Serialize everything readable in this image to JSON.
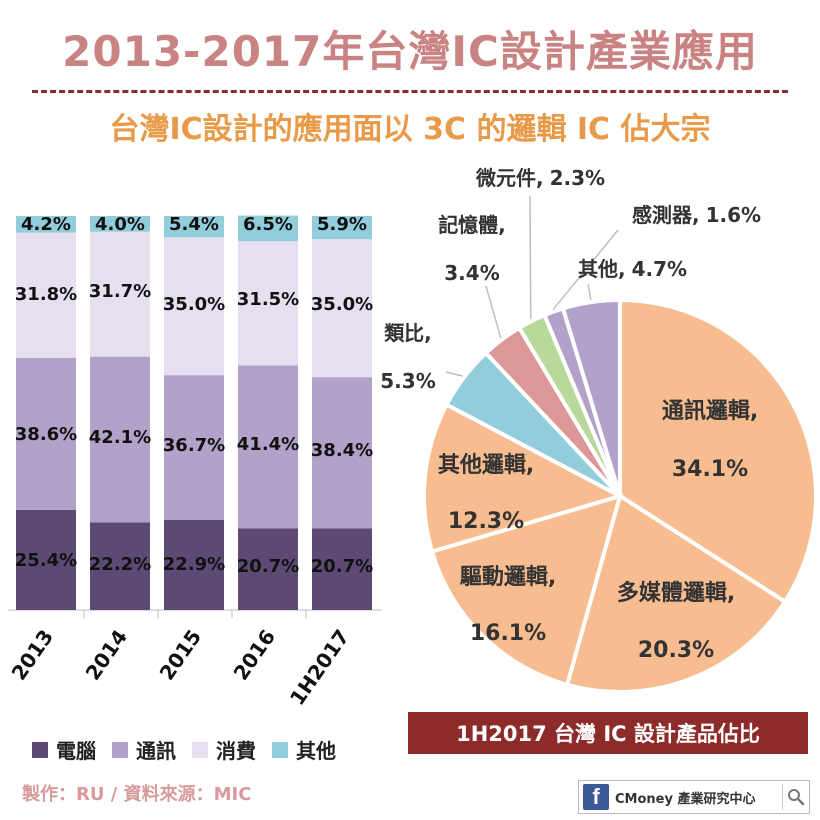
{
  "title": "2013-2017年台灣IC設計產業應用",
  "subtitle": "台灣IC設計的應用面以 3C 的邏輯 IC 佔大宗",
  "colors": {
    "title": "#c98383",
    "subtitle": "#e89a48",
    "credit": "#d89a9a",
    "computer": "#5c4a75",
    "communication": "#b2a1c9",
    "consumer": "#e5dff0",
    "other": "#92cddb",
    "pie_logic": "#f7bc90",
    "pie_analog": "#92cddb",
    "pie_memory": "#dc9797",
    "pie_micro": "#b8d99a",
    "pie_sensor": "#b2a1c9",
    "pie_other": "#b2a1c9"
  },
  "legend": [
    {
      "label": "電腦",
      "color_key": "computer"
    },
    {
      "label": "通訊",
      "color_key": "communication"
    },
    {
      "label": "消費",
      "color_key": "consumer"
    },
    {
      "label": "其他",
      "color_key": "other"
    }
  ],
  "credit": "製作：RU  / 資料來源：MIC",
  "pie_caption": "1H2017 台灣 IC 設計產品佔比",
  "brand": {
    "fb": "f",
    "label": "CMoney 產業研究中心",
    "icon": "search-icon"
  },
  "chart_data": [
    {
      "type": "bar",
      "stacked": true,
      "categories": [
        "2013",
        "2014",
        "2015",
        "2016",
        "1H2017"
      ],
      "series": [
        {
          "name": "電腦",
          "color_key": "computer",
          "values": [
            25.4,
            22.2,
            22.9,
            20.7,
            20.7
          ]
        },
        {
          "name": "通訊",
          "color_key": "communication",
          "values": [
            38.6,
            42.1,
            36.7,
            41.4,
            38.4
          ]
        },
        {
          "name": "消費",
          "color_key": "consumer",
          "values": [
            31.8,
            31.7,
            35.0,
            31.5,
            35.0
          ]
        },
        {
          "name": "其他",
          "color_key": "other",
          "values": [
            4.2,
            4.0,
            5.4,
            6.5,
            5.9
          ]
        }
      ],
      "labels": [
        [
          "25.4%",
          "38.6%",
          "31.8%",
          "4.2%"
        ],
        [
          "22.2%",
          "42.1%",
          "31.7%",
          "4.0%"
        ],
        [
          "22.9%",
          "36.7%",
          "35.0%",
          "5.4%"
        ],
        [
          "20.7%",
          "41.4%",
          "31.5%",
          "6.5%"
        ],
        [
          "20.7%",
          "38.4%",
          "35.0%",
          "5.9%"
        ]
      ],
      "ylim": [
        0,
        100
      ],
      "grid": false,
      "legend_position": "bottom"
    },
    {
      "type": "pie",
      "slices": [
        {
          "label": "通訊邏輯,",
          "value": 34.1,
          "text": "34.1%",
          "color_key": "pie_logic"
        },
        {
          "label": "多媒體邏輯,",
          "value": 20.3,
          "text": "20.3%",
          "color_key": "pie_logic"
        },
        {
          "label": "驅動邏輯,",
          "value": 16.1,
          "text": "16.1%",
          "color_key": "pie_logic"
        },
        {
          "label": "其他邏輯,",
          "value": 12.3,
          "text": "12.3%",
          "color_key": "pie_logic"
        },
        {
          "label": "類比,",
          "value": 5.3,
          "text": "5.3%",
          "color_key": "pie_analog"
        },
        {
          "label": "記憶體,",
          "value": 3.4,
          "text": "3.4%",
          "color_key": "pie_memory"
        },
        {
          "label": "微元件,",
          "value": 2.3,
          "text": "2.3%",
          "color_key": "pie_micro"
        },
        {
          "label": "感測器,",
          "value": 1.6,
          "text": "1.6%",
          "color_key": "pie_sensor"
        },
        {
          "label": "其他,",
          "value": 4.7,
          "text": "4.7%",
          "color_key": "pie_other"
        }
      ]
    }
  ]
}
